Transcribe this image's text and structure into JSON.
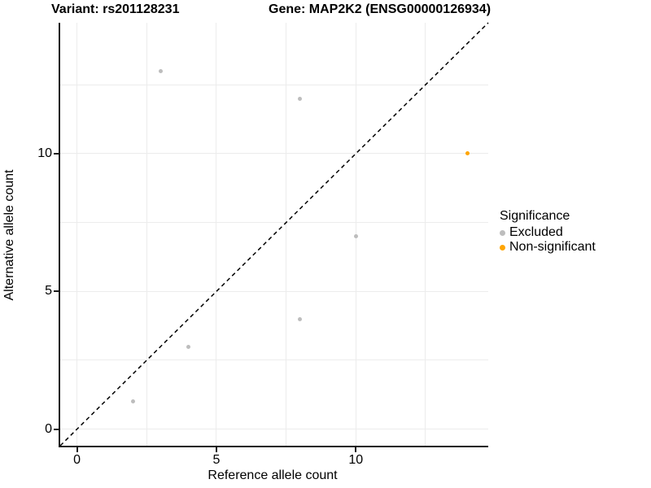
{
  "titles": {
    "left": "Variant: rs201128231",
    "right": "Gene: MAP2K2 (ENSG00000126934)"
  },
  "chart_data": {
    "type": "scatter",
    "xlabel": "Reference allele count",
    "ylabel": "Alternative allele count",
    "xlim": [
      -0.6,
      14.75
    ],
    "ylim": [
      -0.6,
      14.75
    ],
    "x_ticks": [
      0,
      5,
      10
    ],
    "y_ticks": [
      0,
      5,
      10
    ],
    "x_minor_gridlines": [
      2.5,
      7.5,
      12.5
    ],
    "y_minor_gridlines": [
      2.5,
      7.5,
      12.5
    ],
    "grid": "on",
    "gridline_color": "#ececec",
    "axis_line_color": "#1a1a1a",
    "identity_line": {
      "style": "dashed",
      "color": "#000000",
      "from": [
        -0.6,
        -0.6
      ],
      "to": [
        14.75,
        14.75
      ]
    },
    "series": [
      {
        "name": "Excluded",
        "color": "#bdbdbd",
        "points": [
          [
            3,
            13
          ],
          [
            8,
            12
          ],
          [
            10,
            7
          ],
          [
            8,
            4
          ],
          [
            4,
            3
          ],
          [
            2,
            1
          ]
        ]
      },
      {
        "name": "Non-significant",
        "color": "#ffa500",
        "points": [
          [
            14,
            10
          ]
        ]
      }
    ],
    "legend": {
      "title": "Significance",
      "position": "right",
      "entries": [
        {
          "label": "Excluded",
          "color": "#bdbdbd"
        },
        {
          "label": "Non-significant",
          "color": "#ffa500"
        }
      ]
    }
  }
}
